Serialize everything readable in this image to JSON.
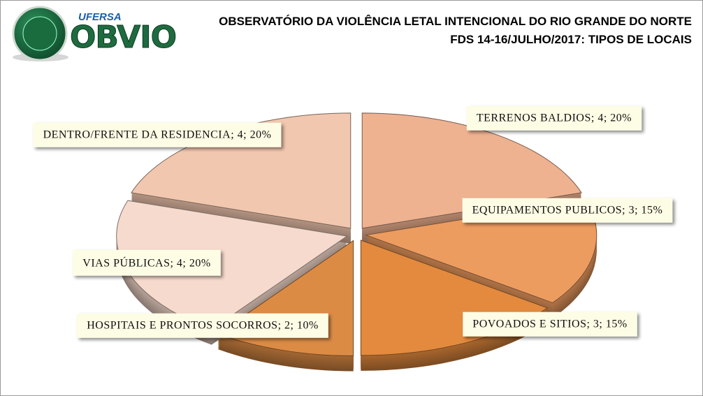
{
  "header": {
    "org": "UFERSA",
    "logo": "OBVIO"
  },
  "chart_data": {
    "type": "pie",
    "title": "OBSERVATÓRIO DA VIOLÊNCIA LETAL INTENCIONAL DO RIO GRANDE DO NORTE",
    "subtitle": "FDS 14-16/JULHO/2017:  TIPOS DE LOCAIS",
    "categories": [
      "TERRENOS BALDIOS",
      "EQUIPAMENTOS PUBLICOS",
      "POVOADOS E SITIOS",
      "HOSPITAIS E PRONTOS SOCORROS",
      "VIAS PÚBLICAS",
      "DENTRO/FRENTE DA RESIDENCIA"
    ],
    "values": [
      4,
      3,
      3,
      2,
      4,
      4
    ],
    "value_labels": [
      "TERRENOS BALDIOS; 4; 20%",
      "EQUIPAMENTOS PUBLICOS; 3; 15%",
      "POVOADOS E SITIOS; 3; 15%",
      "HOSPITAIS E PRONTOS SOCORROS; 2; 10%",
      "VIAS PÚBLICAS; 4; 20%",
      "DENTRO/FRENTE DA RESIDENCIA; 4; 20%"
    ],
    "colors": [
      "#eeb291",
      "#ed9c60",
      "#e38a3e",
      "#dc8b45",
      "#f6dacd",
      "#f2c7af"
    ]
  }
}
